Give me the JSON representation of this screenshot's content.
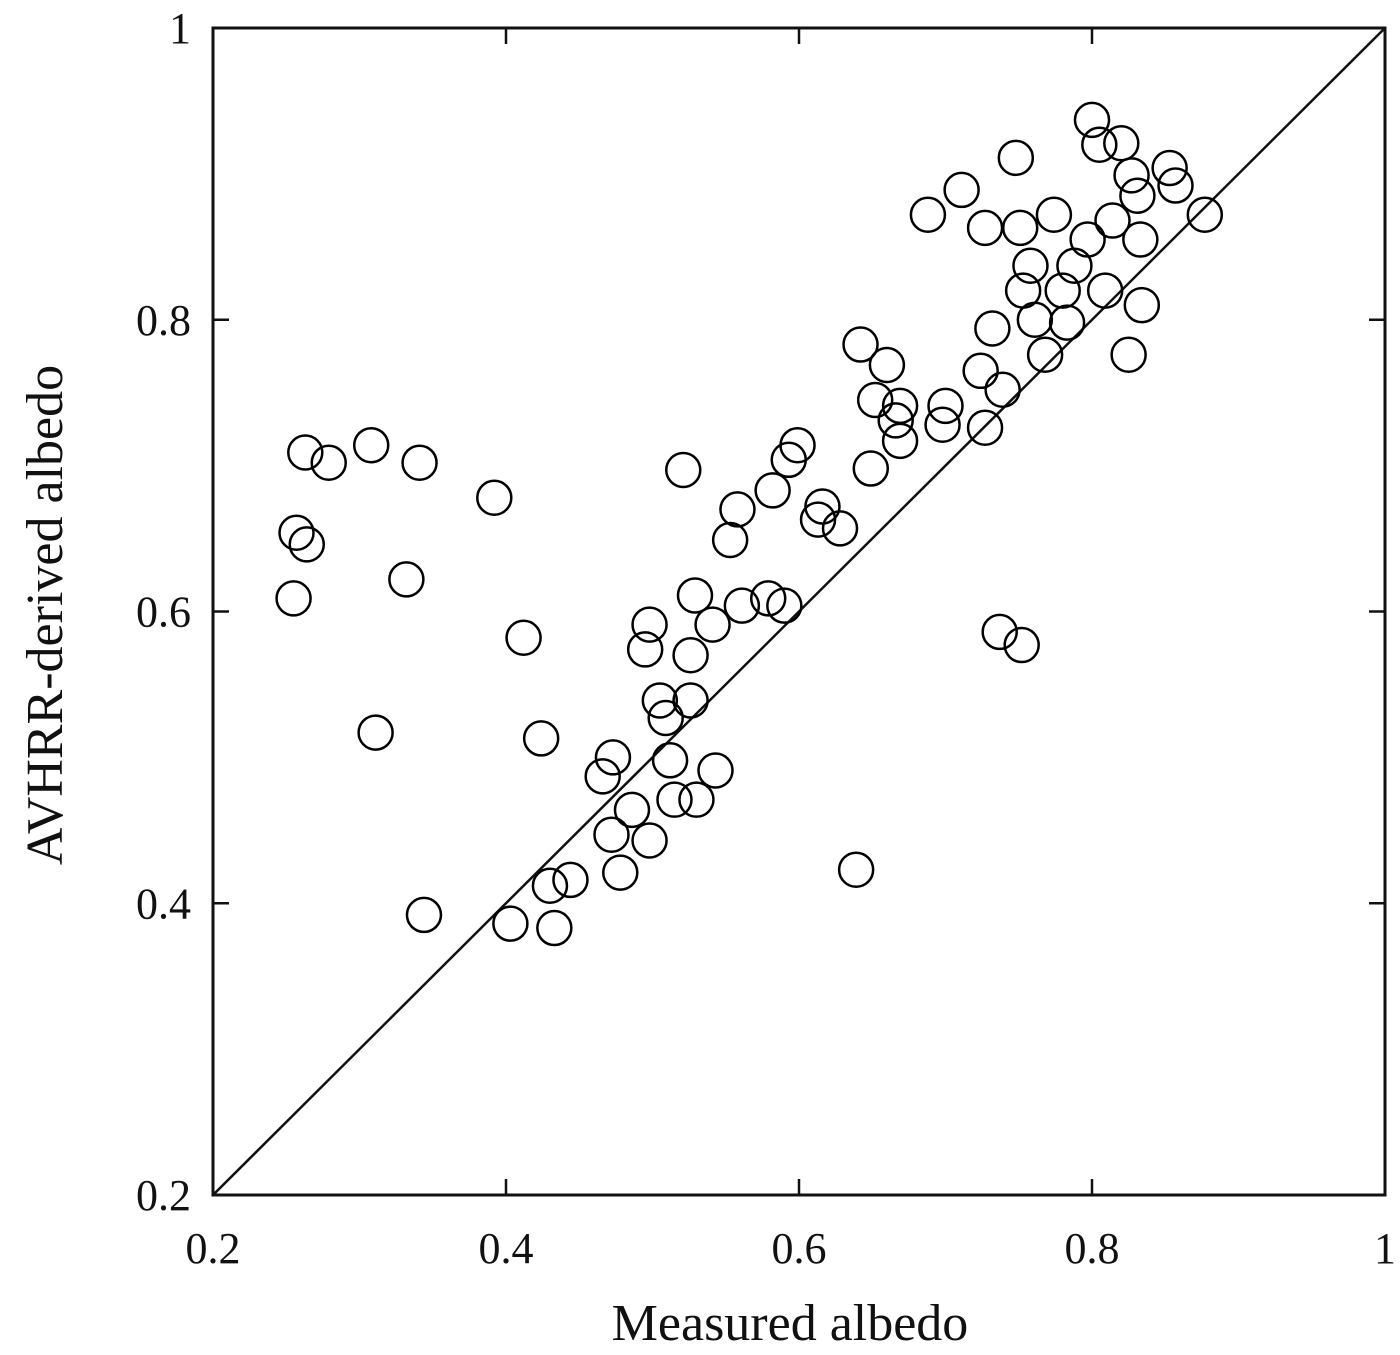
{
  "chart_data": {
    "type": "scatter",
    "xlabel": "Measured albedo",
    "ylabel": "AVHRR-derived albedo",
    "xlim": [
      0.2,
      1
    ],
    "ylim": [
      0.2,
      1
    ],
    "xticks": [
      0.2,
      0.4,
      0.6,
      0.8,
      1
    ],
    "yticks": [
      0.2,
      0.4,
      0.6,
      0.8,
      1
    ],
    "color": "#000000",
    "identity_line": true,
    "x": [
      0.255,
      0.257,
      0.264,
      0.263,
      0.279,
      0.308,
      0.341,
      0.332,
      0.311,
      0.344,
      0.392,
      0.412,
      0.424,
      0.403,
      0.433,
      0.43,
      0.444,
      0.466,
      0.473,
      0.472,
      0.478,
      0.486,
      0.498,
      0.495,
      0.498,
      0.505,
      0.509,
      0.512,
      0.515,
      0.53,
      0.526,
      0.526,
      0.529,
      0.541,
      0.543,
      0.521,
      0.553,
      0.558,
      0.561,
      0.579,
      0.59,
      0.582,
      0.593,
      0.599,
      0.613,
      0.616,
      0.628,
      0.639,
      0.642,
      0.649,
      0.652,
      0.66,
      0.669,
      0.669,
      0.666,
      0.688,
      0.7,
      0.698,
      0.711,
      0.727,
      0.724,
      0.727,
      0.732,
      0.739,
      0.737,
      0.752,
      0.748,
      0.751,
      0.758,
      0.753,
      0.761,
      0.768,
      0.774,
      0.78,
      0.783,
      0.788,
      0.797,
      0.8,
      0.805,
      0.809,
      0.814,
      0.82,
      0.825,
      0.827,
      0.831,
      0.833,
      0.834,
      0.853,
      0.857,
      0.877
    ],
    "y": [
      0.609,
      0.654,
      0.646,
      0.709,
      0.702,
      0.714,
      0.702,
      0.622,
      0.517,
      0.392,
      0.678,
      0.582,
      0.513,
      0.386,
      0.383,
      0.412,
      0.416,
      0.487,
      0.5,
      0.447,
      0.421,
      0.464,
      0.443,
      0.574,
      0.591,
      0.539,
      0.527,
      0.498,
      0.471,
      0.471,
      0.539,
      0.57,
      0.611,
      0.591,
      0.491,
      0.697,
      0.649,
      0.67,
      0.604,
      0.609,
      0.604,
      0.683,
      0.704,
      0.714,
      0.663,
      0.672,
      0.657,
      0.423,
      0.783,
      0.698,
      0.745,
      0.769,
      0.717,
      0.741,
      0.731,
      0.872,
      0.741,
      0.728,
      0.889,
      0.863,
      0.765,
      0.726,
      0.794,
      0.752,
      0.586,
      0.577,
      0.911,
      0.863,
      0.837,
      0.82,
      0.8,
      0.776,
      0.872,
      0.82,
      0.798,
      0.837,
      0.855,
      0.937,
      0.92,
      0.82,
      0.868,
      0.921,
      0.776,
      0.899,
      0.885,
      0.855,
      0.81,
      0.904,
      0.892,
      0.872
    ]
  }
}
